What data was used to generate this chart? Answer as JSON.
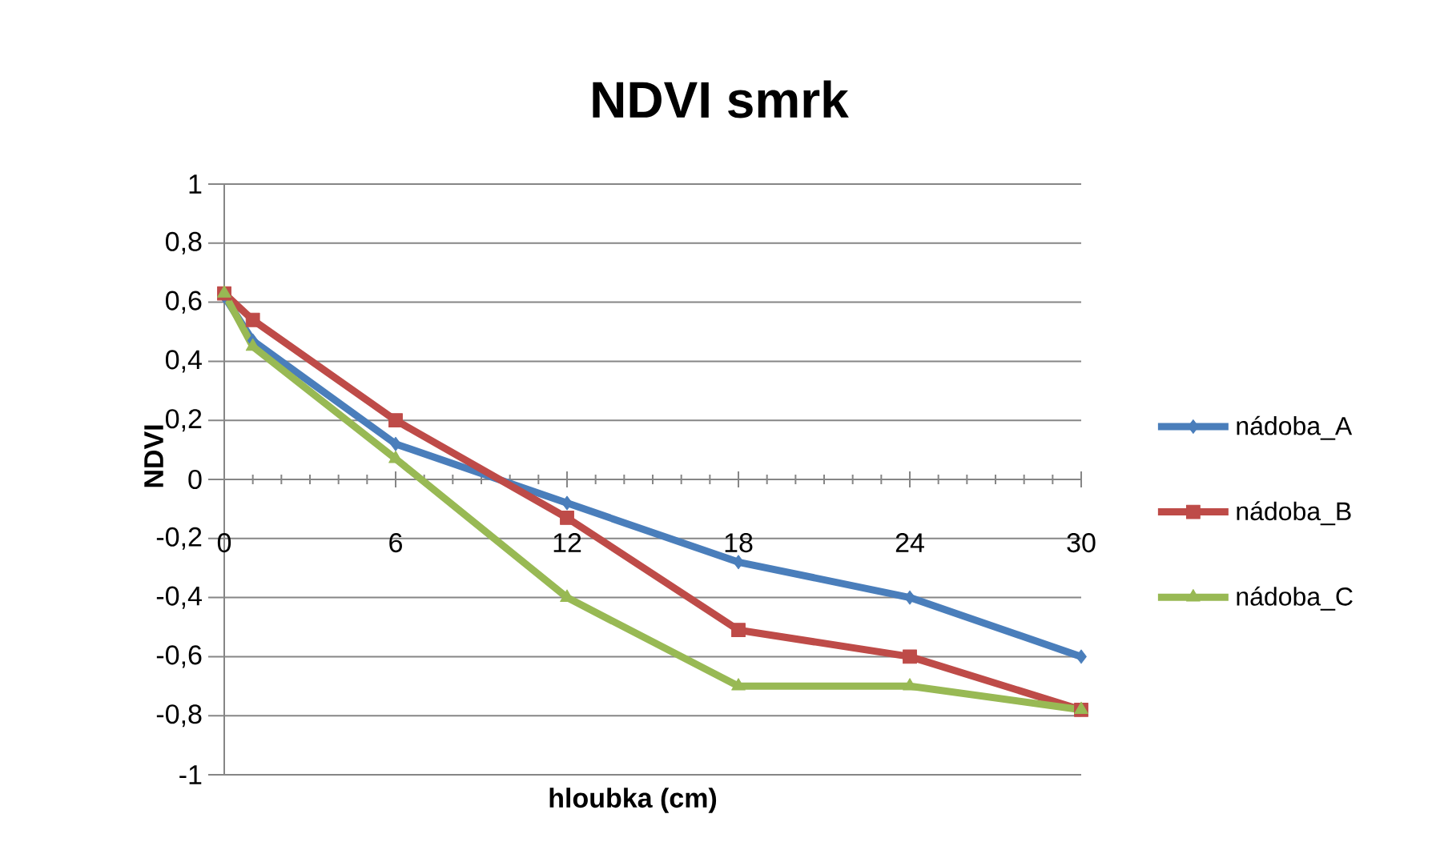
{
  "chart_data": {
    "type": "line",
    "title": "NDVI smrk",
    "xlabel": "hloubka (cm)",
    "ylabel": "NDVI",
    "x": [
      0,
      1,
      6,
      12,
      18,
      24,
      30
    ],
    "xlim": [
      0,
      30
    ],
    "xticks": [
      0,
      {
        "value": 1,
        "label": null
      },
      {
        "value": 2,
        "label": null
      },
      {
        "value": 3,
        "label": null
      },
      {
        "value": 4,
        "label": null
      },
      {
        "value": 5,
        "label": null
      },
      6,
      {
        "value": 7,
        "label": null
      },
      {
        "value": 8,
        "label": null
      },
      {
        "value": 9,
        "label": null
      },
      {
        "value": 10,
        "label": null
      },
      {
        "value": 11,
        "label": null
      },
      12,
      {
        "value": 13,
        "label": null
      },
      {
        "value": 14,
        "label": null
      },
      {
        "value": 15,
        "label": null
      },
      {
        "value": 16,
        "label": null
      },
      {
        "value": 17,
        "label": null
      },
      18,
      {
        "value": 19,
        "label": null
      },
      {
        "value": 20,
        "label": null
      },
      {
        "value": 21,
        "label": null
      },
      {
        "value": 22,
        "label": null
      },
      {
        "value": 23,
        "label": null
      },
      24,
      {
        "value": 25,
        "label": null
      },
      {
        "value": 26,
        "label": null
      },
      {
        "value": 27,
        "label": null
      },
      {
        "value": 28,
        "label": null
      },
      {
        "value": 29,
        "label": null
      },
      30
    ],
    "ylim": [
      -1,
      1
    ],
    "yticks": [
      -1,
      {
        "value": -0.8,
        "label": "-0,8"
      },
      {
        "value": -0.6,
        "label": "-0,6"
      },
      {
        "value": -0.4,
        "label": "-0,4"
      },
      {
        "value": -0.2,
        "label": "-0,2"
      },
      0,
      {
        "value": 0.2,
        "label": "0,2"
      },
      {
        "value": 0.4,
        "label": "0,4"
      },
      {
        "value": 0.6,
        "label": "0,6"
      },
      {
        "value": 0.8,
        "label": "0,8"
      },
      1
    ],
    "grid": "y",
    "legend": "right",
    "line_style": "solid",
    "series": [
      {
        "name": "nádoba_A",
        "color": "#4a7ebb",
        "marker": "diamond",
        "values": [
          0.62,
          0.47,
          0.12,
          -0.08,
          -0.28,
          -0.4,
          -0.6
        ]
      },
      {
        "name": "nádoba_B",
        "color": "#be4b48",
        "marker": "square",
        "values": [
          0.63,
          0.54,
          0.2,
          -0.13,
          -0.51,
          -0.6,
          -0.78
        ]
      },
      {
        "name": "nádoba_C",
        "color": "#98b954",
        "marker": "triangle",
        "values": [
          0.63,
          0.45,
          0.07,
          -0.4,
          -0.7,
          -0.7,
          -0.78
        ]
      }
    ]
  }
}
